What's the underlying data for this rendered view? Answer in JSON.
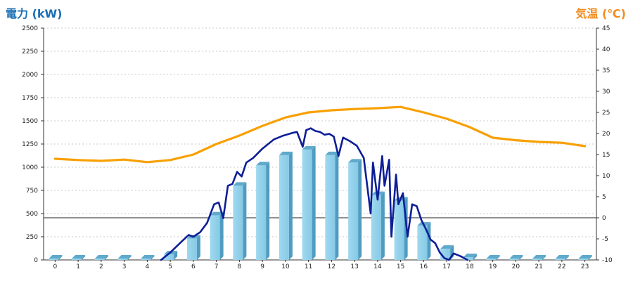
{
  "chart_data": {
    "type": "bar",
    "title_left": "電力 (kW)",
    "title_right": "気温 (℃)",
    "categories": [
      "0",
      "1",
      "2",
      "3",
      "4",
      "5",
      "6",
      "7",
      "8",
      "9",
      "10",
      "11",
      "12",
      "13",
      "14",
      "15",
      "16",
      "17",
      "18",
      "19",
      "20",
      "21",
      "22",
      "23"
    ],
    "y_left": {
      "min": 0,
      "max": 2500,
      "ticks": [
        0,
        250,
        500,
        750,
        1000,
        1250,
        1500,
        1750,
        2000,
        2250,
        2500
      ]
    },
    "y_right": {
      "min": -10,
      "max": 45,
      "ticks": [
        -10,
        -5,
        0,
        5,
        10,
        15,
        20,
        25,
        30,
        35,
        40,
        45
      ]
    },
    "grid": true,
    "series": [
      {
        "kind": "bar",
        "values": [
          15,
          15,
          15,
          15,
          15,
          60,
          230,
          480,
          800,
          1020,
          1130,
          1190,
          1130,
          1050,
          700,
          640,
          370,
          120,
          30,
          15,
          15,
          15,
          15,
          15
        ]
      },
      {
        "kind": "line",
        "axis": "left",
        "color": "#0d1e96",
        "x": [
          4.6,
          5.0,
          5.5,
          5.8,
          6.0,
          6.3,
          6.6,
          6.9,
          7.1,
          7.3,
          7.5,
          7.7,
          7.9,
          8.1,
          8.3,
          8.6,
          9.0,
          9.5,
          9.9,
          10.3,
          10.5,
          10.75,
          10.9,
          11.1,
          11.3,
          11.5,
          11.7,
          11.9,
          12.1,
          12.3,
          12.5,
          12.8,
          13.1,
          13.4,
          13.7,
          13.8,
          14.0,
          14.2,
          14.3,
          14.5,
          14.6,
          14.8,
          14.9,
          15.1,
          15.3,
          15.5,
          15.7,
          15.9,
          16.1,
          16.3,
          16.5,
          16.7,
          16.9,
          17.1,
          17.3,
          17.6,
          17.9
        ],
        "y": [
          0,
          80,
          200,
          270,
          250,
          300,
          400,
          600,
          620,
          450,
          800,
          820,
          950,
          900,
          1050,
          1100,
          1200,
          1300,
          1340,
          1370,
          1380,
          1220,
          1400,
          1420,
          1390,
          1380,
          1350,
          1360,
          1330,
          1120,
          1320,
          1280,
          1230,
          1100,
          500,
          1050,
          650,
          1120,
          800,
          1080,
          250,
          920,
          600,
          720,
          250,
          600,
          580,
          430,
          330,
          220,
          180,
          80,
          20,
          0,
          70,
          40,
          0
        ]
      },
      {
        "kind": "line",
        "axis": "right",
        "color": "#f8a000",
        "x": [
          0,
          1,
          2,
          3,
          4,
          5,
          6,
          7,
          8,
          9,
          10,
          11,
          12,
          13,
          14,
          15,
          16,
          17,
          18,
          19,
          20,
          21,
          22,
          23
        ],
        "y": [
          14.0,
          13.7,
          13.5,
          13.8,
          13.2,
          13.7,
          15.0,
          17.5,
          19.5,
          21.8,
          23.8,
          25.0,
          25.5,
          25.8,
          26.0,
          26.3,
          25.0,
          23.5,
          21.5,
          19.0,
          18.4,
          18.0,
          17.8,
          17.0
        ]
      }
    ]
  }
}
